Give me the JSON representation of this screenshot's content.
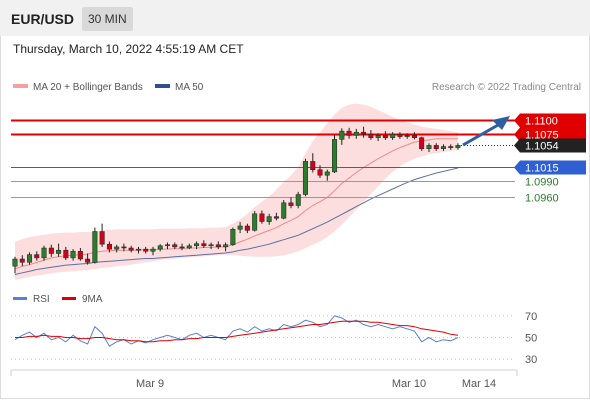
{
  "header": {
    "symbol": "EUR/USD",
    "timeframe": "30 MIN"
  },
  "datetime": "Thursday, March 10, 2022 4:55:19 AM CET",
  "legend": {
    "bollinger": "MA 20 + Bollinger Bands",
    "ma50": "MA 50",
    "credit": "Research © 2022 Trading Central",
    "rsi": "RSI",
    "rsi_ma": "9MA"
  },
  "colors": {
    "up": "#2a7d2a",
    "down": "#d0021b",
    "band": "#fbd3d3",
    "ma20": "#f08a8a",
    "ma50": "#5a6fa8",
    "resistance": "#e00000",
    "support": "#2f5fd0",
    "target": "#7fb069",
    "rsi": "#5a7fd6",
    "rsi_ma": "#e00000",
    "arrow": "#2f5fa0"
  },
  "levels": [
    {
      "name": "resistance-level-1",
      "value": "1.1100",
      "type": "resistance",
      "style": "line-badge"
    },
    {
      "name": "resistance-level-2",
      "value": "1.1075",
      "type": "resistance",
      "style": "line-badge"
    },
    {
      "name": "last-price",
      "value": "1.1054",
      "type": "last",
      "style": "dotted-badge"
    },
    {
      "name": "pivot-level",
      "value": "1.1015",
      "type": "support",
      "style": "line-badge"
    },
    {
      "name": "support-level-1",
      "value": "1.0990",
      "type": "target",
      "style": "line-text"
    },
    {
      "name": "support-level-2",
      "value": "1.0960",
      "type": "target",
      "style": "line-text"
    }
  ],
  "xaxis": {
    "labels": [
      "Mar 9",
      "Mar 10",
      "Mar 14"
    ]
  },
  "rsi_axis": {
    "labels": [
      "70",
      "50",
      "30"
    ]
  },
  "chart_data": [
    {
      "type": "candlestick",
      "title": "EUR/USD 30 MIN",
      "ylim": [
        1.081,
        1.114
      ],
      "series": [
        {
          "name": "EUR/USD",
          "ohlc": [
            [
              1.0835,
              1.0852,
              1.0822,
              1.0848
            ],
            [
              1.0848,
              1.0855,
              1.0835,
              1.0842
            ],
            [
              1.0842,
              1.086,
              1.0838,
              1.0856
            ],
            [
              1.0856,
              1.0862,
              1.0845,
              1.085
            ],
            [
              1.085,
              1.0872,
              1.0845,
              1.0868
            ],
            [
              1.0868,
              1.0874,
              1.0852,
              1.0858
            ],
            [
              1.0858,
              1.0876,
              1.0852,
              1.0864
            ],
            [
              1.0864,
              1.087,
              1.0846,
              1.085
            ],
            [
              1.085,
              1.0866,
              1.0845,
              1.0862
            ],
            [
              1.0862,
              1.0868,
              1.0845,
              1.0848
            ],
            [
              1.0848,
              1.0858,
              1.0838,
              1.0842
            ],
            [
              1.0842,
              1.0905,
              1.084,
              1.0898
            ],
            [
              1.0898,
              1.0912,
              1.087,
              1.0875
            ],
            [
              1.0875,
              1.088,
              1.086,
              1.0866
            ],
            [
              1.0866,
              1.0874,
              1.086,
              1.087
            ],
            [
              1.087,
              1.0876,
              1.0862,
              1.0868
            ],
            [
              1.0868,
              1.0872,
              1.086,
              1.0864
            ],
            [
              1.0864,
              1.087,
              1.0858,
              1.0866
            ],
            [
              1.0866,
              1.087,
              1.0858,
              1.0862
            ],
            [
              1.0862,
              1.087,
              1.0855,
              1.0866
            ],
            [
              1.0866,
              1.0875,
              1.0862,
              1.0872
            ],
            [
              1.0872,
              1.0878,
              1.0866,
              1.0874
            ],
            [
              1.0874,
              1.0878,
              1.0866,
              1.087
            ],
            [
              1.087,
              1.0876,
              1.0864,
              1.0868
            ],
            [
              1.0868,
              1.0876,
              1.0866,
              1.0872
            ],
            [
              1.0872,
              1.088,
              1.0866,
              1.0876
            ],
            [
              1.0876,
              1.0882,
              1.0868,
              1.0872
            ],
            [
              1.0872,
              1.0878,
              1.0866,
              1.0874
            ],
            [
              1.0874,
              1.088,
              1.0866,
              1.087
            ],
            [
              1.087,
              1.0878,
              1.0862,
              1.0874
            ],
            [
              1.0874,
              1.0905,
              1.0872,
              1.0902
            ],
            [
              1.0902,
              1.0915,
              1.0895,
              1.0908
            ],
            [
              1.0908,
              1.0912,
              1.0895,
              1.09
            ],
            [
              1.09,
              1.0935,
              1.0898,
              1.093
            ],
            [
              1.093,
              1.0936,
              1.0912,
              1.0916
            ],
            [
              1.0916,
              1.093,
              1.091,
              1.0925
            ],
            [
              1.0925,
              1.0932,
              1.0918,
              1.0922
            ],
            [
              1.0922,
              1.0955,
              1.092,
              1.095
            ],
            [
              1.095,
              1.096,
              1.094,
              1.0945
            ],
            [
              1.0945,
              1.097,
              1.094,
              1.0965
            ],
            [
              1.0965,
              1.103,
              1.0962,
              1.1025
            ],
            [
              1.1025,
              1.104,
              1.1005,
              1.101
            ],
            [
              1.101,
              1.1018,
              1.0995,
              1.1
            ],
            [
              1.1,
              1.101,
              1.099,
              1.1006
            ],
            [
              1.1006,
              1.1072,
              1.1004,
              1.1065
            ],
            [
              1.1065,
              1.1085,
              1.1055,
              1.108
            ],
            [
              1.108,
              1.1086,
              1.1066,
              1.1072
            ],
            [
              1.1072,
              1.1084,
              1.1066,
              1.1078
            ],
            [
              1.1078,
              1.1088,
              1.1068,
              1.1074
            ],
            [
              1.1074,
              1.1082,
              1.1064,
              1.1068
            ],
            [
              1.1068,
              1.1076,
              1.1062,
              1.1072
            ],
            [
              1.1072,
              1.108,
              1.1064,
              1.1068
            ],
            [
              1.1068,
              1.1078,
              1.1064,
              1.1074
            ],
            [
              1.1074,
              1.1078,
              1.1066,
              1.107
            ],
            [
              1.107,
              1.1076,
              1.1066,
              1.1072
            ],
            [
              1.1072,
              1.1078,
              1.1065,
              1.1068
            ],
            [
              1.1068,
              1.107,
              1.1044,
              1.1048
            ],
            [
              1.1048,
              1.1058,
              1.1042,
              1.1054
            ],
            [
              1.1054,
              1.1058,
              1.1044,
              1.1048
            ],
            [
              1.1048,
              1.1056,
              1.1044,
              1.1052
            ],
            [
              1.1052,
              1.1056,
              1.1046,
              1.105
            ],
            [
              1.105,
              1.1058,
              1.1046,
              1.1054
            ]
          ]
        },
        {
          "name": "MA 20",
          "values": [
            1.083,
            1.0835,
            1.0838,
            1.0842,
            1.0846,
            1.085,
            1.0852,
            1.0854,
            1.0855,
            1.0856,
            1.0857,
            1.086,
            1.0862,
            1.0863,
            1.0864,
            1.0864,
            1.0864,
            1.0864,
            1.0865,
            1.0865,
            1.0866,
            1.0866,
            1.0867,
            1.0867,
            1.0868,
            1.0868,
            1.0869,
            1.0869,
            1.087,
            1.087,
            1.0874,
            1.0879,
            1.0884,
            1.089,
            1.0895,
            1.09,
            1.0905,
            1.0912,
            1.0918,
            1.0925,
            1.0936,
            1.0945,
            1.0952,
            1.096,
            1.0972,
            1.0985,
            1.0995,
            1.1005,
            1.1014,
            1.1022,
            1.103,
            1.1037,
            1.1044,
            1.105,
            1.1055,
            1.106,
            1.1062,
            1.1064,
            1.1066,
            1.1066,
            1.1066,
            1.1066
          ]
        },
        {
          "name": "MA 50",
          "values": [
            1.082,
            1.0823,
            1.0826,
            1.0829,
            1.0831,
            1.0833,
            1.0835,
            1.0837,
            1.0838,
            1.0839,
            1.084,
            1.0842,
            1.0843,
            1.0844,
            1.0845,
            1.0846,
            1.0847,
            1.0848,
            1.0849,
            1.0849,
            1.085,
            1.0851,
            1.0852,
            1.0853,
            1.0854,
            1.0855,
            1.0856,
            1.0857,
            1.0858,
            1.0859,
            1.0861,
            1.0864,
            1.0866,
            1.0869,
            1.0872,
            1.0875,
            1.0879,
            1.0883,
            1.0887,
            1.0891,
            1.0897,
            1.0903,
            1.0909,
            1.0915,
            1.0922,
            1.0929,
            1.0936,
            1.0943,
            1.095,
            1.0957,
            1.0963,
            1.0969,
            1.0975,
            1.0981,
            1.0987,
            1.0992,
            1.0996,
            1.1,
            1.1004,
            1.1007,
            1.101,
            1.1013
          ]
        },
        {
          "name": "Bollinger Upper",
          "values": [
            1.088,
            1.0884,
            1.0888,
            1.089,
            1.0892,
            1.0894,
            1.0895,
            1.0896,
            1.0896,
            1.0897,
            1.0897,
            1.0898,
            1.09,
            1.0901,
            1.0902,
            1.0902,
            1.0902,
            1.0902,
            1.0902,
            1.0902,
            1.0903,
            1.0903,
            1.0903,
            1.0903,
            1.0904,
            1.0904,
            1.0904,
            1.0905,
            1.0905,
            1.0906,
            1.0912,
            1.092,
            1.093,
            1.0942,
            1.0952,
            1.0962,
            1.0974,
            1.0988,
            1.1,
            1.1015,
            1.104,
            1.1062,
            1.1078,
            1.1094,
            1.111,
            1.1122,
            1.1128,
            1.113,
            1.1128,
            1.1124,
            1.1118,
            1.1112,
            1.1106,
            1.11,
            1.1096,
            1.1092,
            1.1088,
            1.1086,
            1.1084,
            1.1082,
            1.108,
            1.1078
          ]
        },
        {
          "name": "Bollinger Lower",
          "values": [
            1.081,
            1.0813,
            1.0816,
            1.0818,
            1.082,
            1.0822,
            1.0824,
            1.0825,
            1.0826,
            1.0827,
            1.0828,
            1.083,
            1.0832,
            1.0833,
            1.0835,
            1.0836,
            1.0838,
            1.084,
            1.0842,
            1.0844,
            1.0846,
            1.0848,
            1.0849,
            1.085,
            1.0851,
            1.0852,
            1.0853,
            1.0854,
            1.0855,
            1.0856,
            1.0855,
            1.0854,
            1.0853,
            1.0852,
            1.0852,
            1.0852,
            1.0853,
            1.0855,
            1.0858,
            1.0862,
            1.0868,
            1.0874,
            1.088,
            1.0888,
            1.0898,
            1.091,
            1.0924,
            1.0938,
            1.0952,
            1.0966,
            1.098,
            1.0994,
            1.1006,
            1.1016,
            1.1024,
            1.103,
            1.1034,
            1.1038,
            1.104,
            1.1042,
            1.1044,
            1.1046
          ]
        }
      ]
    },
    {
      "type": "line",
      "title": "",
      "ylim": [
        20,
        80
      ],
      "series": [
        {
          "name": "RSI",
          "values": [
            48,
            52,
            55,
            50,
            54,
            48,
            50,
            46,
            52,
            47,
            44,
            60,
            54,
            42,
            46,
            48,
            44,
            47,
            45,
            48,
            50,
            52,
            50,
            48,
            52,
            54,
            50,
            52,
            50,
            48,
            56,
            58,
            55,
            60,
            56,
            58,
            56,
            62,
            60,
            62,
            66,
            64,
            60,
            62,
            70,
            68,
            64,
            66,
            62,
            60,
            62,
            60,
            58,
            60,
            58,
            56,
            46,
            50,
            46,
            48,
            47,
            50
          ]
        },
        {
          "name": "9MA",
          "values": [
            50,
            50,
            51,
            51,
            52,
            51,
            51,
            50,
            50,
            49,
            49,
            50,
            50,
            49,
            48,
            48,
            47,
            47,
            46,
            46,
            47,
            47,
            48,
            48,
            49,
            49,
            50,
            50,
            50,
            50,
            51,
            52,
            53,
            54,
            55,
            56,
            57,
            58,
            59,
            60,
            61,
            62,
            62,
            63,
            64,
            65,
            65,
            65,
            65,
            64,
            64,
            63,
            62,
            61,
            61,
            60,
            58,
            57,
            56,
            55,
            53,
            52
          ]
        }
      ]
    }
  ]
}
